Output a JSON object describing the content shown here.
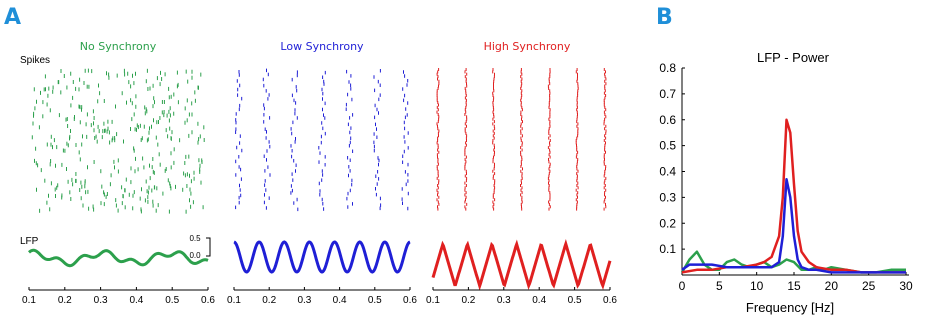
{
  "panels": {
    "a_label": "A",
    "b_label": "B"
  },
  "colors": {
    "none": "#2ca04c",
    "low": "#1f1fd6",
    "high": "#e02020",
    "panel_letter": "#1f8fd8"
  },
  "chart_data": [
    {
      "type": "raster_and_line",
      "row_labels": {
        "spikes": "Spikes",
        "lfp": "LFP"
      },
      "scale_bar": {
        "top_label": "0.5",
        "bottom_label": "0.0"
      },
      "x_ticks": [
        "0.1",
        "0.2",
        "0.3",
        "0.4",
        "0.5",
        "0.6"
      ],
      "xlim": [
        0.1,
        0.6
      ],
      "conditions": [
        {
          "title": "No Synchrony",
          "color": "#2ca04c",
          "lfp_freq_hz": 5,
          "lfp_amplitude": 0.15
        },
        {
          "title": "Low Synchrony",
          "color": "#1f1fd6",
          "lfp_freq_hz": 14,
          "lfp_amplitude": 0.35
        },
        {
          "title": "High Synchrony",
          "color": "#e02020",
          "lfp_freq_hz": 14,
          "lfp_amplitude": 0.55
        }
      ]
    },
    {
      "type": "line",
      "title": "LFP - Power",
      "xlabel": "Frequency [Hz]",
      "ylabel": "",
      "xlim": [
        0,
        30
      ],
      "ylim": [
        0,
        0.8
      ],
      "x_ticks": [
        "0",
        "5",
        "10",
        "15",
        "20",
        "25",
        "30"
      ],
      "y_ticks": [
        "0.1",
        "0.2",
        "0.3",
        "0.4",
        "0.5",
        "0.6",
        "0.7",
        "0.8"
      ],
      "series": [
        {
          "color": "#2ca04c",
          "x": [
            0,
            1,
            2,
            3,
            4,
            5,
            6,
            7,
            8,
            9,
            10,
            11,
            12,
            13,
            14,
            15,
            16,
            17,
            18,
            19,
            20,
            22,
            24,
            26,
            28,
            30
          ],
          "y": [
            0.01,
            0.06,
            0.09,
            0.04,
            0.02,
            0.02,
            0.05,
            0.06,
            0.04,
            0.03,
            0.04,
            0.05,
            0.03,
            0.04,
            0.06,
            0.05,
            0.02,
            0.02,
            0.03,
            0.02,
            0.03,
            0.02,
            0.01,
            0.01,
            0.02,
            0.02
          ]
        },
        {
          "color": "#e02020",
          "x": [
            0,
            2,
            4,
            6,
            8,
            10,
            11,
            12,
            13,
            13.5,
            14,
            14.5,
            15,
            15.5,
            16,
            17,
            18,
            20,
            22,
            24,
            26,
            28,
            30
          ],
          "y": [
            0.01,
            0.02,
            0.02,
            0.03,
            0.03,
            0.04,
            0.05,
            0.07,
            0.15,
            0.3,
            0.6,
            0.55,
            0.35,
            0.17,
            0.09,
            0.05,
            0.03,
            0.02,
            0.02,
            0.01,
            0.01,
            0.01,
            0.01
          ]
        },
        {
          "color": "#1f1fd6",
          "x": [
            0,
            1,
            2,
            4,
            6,
            8,
            10,
            11,
            12,
            13,
            13.5,
            14,
            14.5,
            15,
            15.5,
            16,
            17,
            18,
            20,
            22,
            24,
            26,
            28,
            30
          ],
          "y": [
            0.02,
            0.04,
            0.04,
            0.04,
            0.03,
            0.03,
            0.03,
            0.03,
            0.03,
            0.05,
            0.15,
            0.37,
            0.3,
            0.15,
            0.06,
            0.03,
            0.02,
            0.02,
            0.01,
            0.01,
            0.01,
            0.01,
            0.01,
            0.01
          ]
        }
      ]
    }
  ]
}
